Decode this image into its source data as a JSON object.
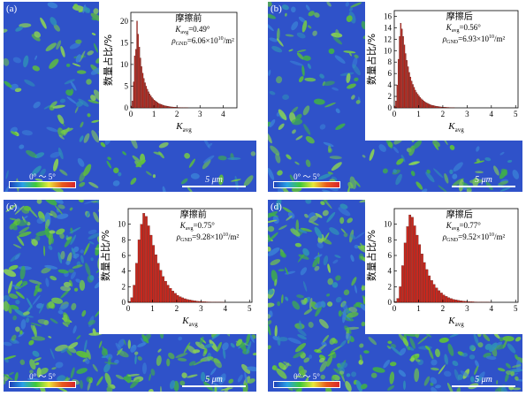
{
  "colors": {
    "bar_fill": "#c8281e",
    "map_base": "#2f52c9",
    "map_speckle": "#66c33c"
  },
  "panels": [
    {
      "label": "(a)",
      "scale_text": "5 μm",
      "legend_text": "0° ～ 5°",
      "inset": {
        "title": "摩擦前",
        "k_line": "=0.49°",
        "rho_line": "=6.06×10",
        "rho_exp": "10",
        "rho_unit": "/m²"
      }
    },
    {
      "label": "(b)",
      "scale_text": "5 μm",
      "legend_text": "0° ～ 5°",
      "inset": {
        "title": "摩擦后",
        "k_line": "=0.56°",
        "rho_line": "=6.93×10",
        "rho_exp": "10",
        "rho_unit": "/m²"
      }
    },
    {
      "label": "(c)",
      "scale_text": "5 μm",
      "legend_text": "0° ～ 5°",
      "inset": {
        "title": "摩擦前",
        "k_line": "=0.75°",
        "rho_line": "=9.28×10",
        "rho_exp": "10",
        "rho_unit": "/m²"
      }
    },
    {
      "label": "(d)",
      "scale_text": "5 μm",
      "legend_text": "0° ～ 5°",
      "inset": {
        "title": "摩擦后",
        "k_line": "=0.77°",
        "rho_line": "=9.52×10",
        "rho_exp": "10",
        "rho_unit": "/m²"
      }
    }
  ],
  "chart_data": [
    {
      "type": "bar",
      "panel": "(a)",
      "xlabel": "K",
      "xlabel_sub": "avg",
      "ylabel": "数量占比/%",
      "xlim": [
        0,
        4.6
      ],
      "ylim": [
        0,
        22
      ],
      "xticks": [
        0,
        1,
        2,
        3,
        4
      ],
      "yticks": [
        0,
        5,
        10,
        15,
        20
      ],
      "bin_width": 0.05,
      "bins_x": [
        0.025,
        0.075,
        0.125,
        0.175,
        0.225,
        0.275,
        0.325,
        0.375,
        0.425,
        0.475,
        0.525,
        0.575,
        0.625,
        0.675,
        0.725,
        0.775,
        0.825,
        0.875,
        0.925,
        0.975,
        1.025,
        1.075,
        1.125,
        1.175,
        1.225,
        1.275,
        1.325,
        1.375,
        1.425,
        1.475,
        1.525,
        1.575,
        1.625,
        1.675,
        1.725,
        1.775,
        1.825,
        1.875,
        1.925,
        1.975,
        2.025,
        2.075,
        2.125,
        2.175,
        2.225,
        2.275,
        2.325,
        2.375,
        2.425,
        2.475
      ],
      "values": [
        0.4,
        1.6,
        6.0,
        12.0,
        13.5,
        20.0,
        17.0,
        14.0,
        11.5,
        9.5,
        8.0,
        6.8,
        5.8,
        5.0,
        4.3,
        3.7,
        3.2,
        2.8,
        2.4,
        2.1,
        1.8,
        1.6,
        1.4,
        1.2,
        1.0,
        0.9,
        0.8,
        0.7,
        0.6,
        0.5,
        0.45,
        0.4,
        0.35,
        0.3,
        0.25,
        0.22,
        0.2,
        0.18,
        0.15,
        0.13,
        0.11,
        0.1,
        0.09,
        0.08,
        0.07,
        0.06,
        0.05,
        0.04,
        0.03,
        0.02
      ]
    },
    {
      "type": "bar",
      "panel": "(b)",
      "xlabel": "K",
      "xlabel_sub": "avg",
      "ylabel": "数量占比/%",
      "xlim": [
        0,
        5.1
      ],
      "ylim": [
        0,
        17
      ],
      "xticks": [
        0,
        1,
        2,
        3,
        4,
        5
      ],
      "yticks": [
        0,
        2,
        4,
        6,
        8,
        10,
        12,
        14,
        16
      ],
      "bin_width": 0.05,
      "bins_x": [
        0.025,
        0.075,
        0.125,
        0.175,
        0.225,
        0.275,
        0.325,
        0.375,
        0.425,
        0.475,
        0.525,
        0.575,
        0.625,
        0.675,
        0.725,
        0.775,
        0.825,
        0.875,
        0.925,
        0.975,
        1.025,
        1.075,
        1.125,
        1.175,
        1.225,
        1.275,
        1.325,
        1.375,
        1.425,
        1.475,
        1.525,
        1.575,
        1.625,
        1.675,
        1.725,
        1.775,
        1.825,
        1.875,
        1.925,
        1.975,
        2.025,
        2.075,
        2.125,
        2.175,
        2.225,
        2.275,
        2.325,
        2.375,
        2.425,
        2.475
      ],
      "values": [
        0.3,
        1.2,
        4.0,
        8.5,
        12.5,
        14.8,
        13.8,
        12.5,
        11.0,
        9.5,
        8.3,
        7.2,
        6.2,
        5.4,
        4.7,
        4.1,
        3.6,
        3.1,
        2.7,
        2.4,
        2.1,
        1.8,
        1.6,
        1.4,
        1.2,
        1.05,
        0.9,
        0.8,
        0.7,
        0.6,
        0.52,
        0.45,
        0.4,
        0.35,
        0.3,
        0.26,
        0.23,
        0.2,
        0.17,
        0.15,
        0.13,
        0.11,
        0.1,
        0.09,
        0.08,
        0.07,
        0.06,
        0.05,
        0.04,
        0.03
      ]
    },
    {
      "type": "bar",
      "panel": "(c)",
      "xlabel": "K",
      "xlabel_sub": "avg",
      "ylabel": "数量占比/%",
      "xlim": [
        0,
        5.1
      ],
      "ylim": [
        0,
        12
      ],
      "xticks": [
        0,
        1,
        2,
        3,
        4,
        5
      ],
      "yticks": [
        0,
        2,
        4,
        6,
        8,
        10
      ],
      "bin_width": 0.1,
      "bins_x": [
        0.05,
        0.15,
        0.25,
        0.35,
        0.45,
        0.55,
        0.65,
        0.75,
        0.85,
        0.95,
        1.05,
        1.15,
        1.25,
        1.35,
        1.45,
        1.55,
        1.65,
        1.75,
        1.85,
        1.95,
        2.05,
        2.15,
        2.25,
        2.35,
        2.45,
        2.55,
        2.65,
        2.75,
        2.85,
        2.95,
        3.05,
        3.15,
        3.25,
        3.35,
        3.45,
        3.55,
        3.65,
        3.75,
        3.85,
        3.95
      ],
      "values": [
        0.1,
        0.6,
        2.2,
        5.0,
        8.0,
        10.0,
        11.4,
        11.0,
        9.8,
        8.6,
        7.3,
        6.1,
        5.0,
        4.1,
        3.3,
        2.7,
        2.2,
        1.8,
        1.45,
        1.15,
        0.9,
        0.72,
        0.58,
        0.46,
        0.37,
        0.3,
        0.24,
        0.19,
        0.15,
        0.12,
        0.1,
        0.08,
        0.06,
        0.05,
        0.04,
        0.03,
        0.03,
        0.02,
        0.02,
        0.01
      ]
    },
    {
      "type": "bar",
      "panel": "(d)",
      "xlabel": "K",
      "xlabel_sub": "avg",
      "ylabel": "数量占比/%",
      "xlim": [
        0,
        5.1
      ],
      "ylim": [
        0,
        12
      ],
      "xticks": [
        0,
        1,
        2,
        3,
        4,
        5
      ],
      "yticks": [
        0,
        2,
        4,
        6,
        8,
        10
      ],
      "bin_width": 0.1,
      "bins_x": [
        0.05,
        0.15,
        0.25,
        0.35,
        0.45,
        0.55,
        0.65,
        0.75,
        0.85,
        0.95,
        1.05,
        1.15,
        1.25,
        1.35,
        1.45,
        1.55,
        1.65,
        1.75,
        1.85,
        1.95,
        2.05,
        2.15,
        2.25,
        2.35,
        2.45,
        2.55,
        2.65,
        2.75,
        2.85,
        2.95,
        3.05,
        3.15,
        3.25,
        3.35,
        3.45,
        3.55,
        3.65,
        3.75,
        3.85,
        3.95
      ],
      "values": [
        0.1,
        0.5,
        2.0,
        4.7,
        7.6,
        9.7,
        11.2,
        10.9,
        9.8,
        8.6,
        7.4,
        6.2,
        5.1,
        4.2,
        3.4,
        2.8,
        2.3,
        1.85,
        1.5,
        1.2,
        0.95,
        0.76,
        0.6,
        0.48,
        0.38,
        0.31,
        0.25,
        0.2,
        0.16,
        0.13,
        0.1,
        0.08,
        0.07,
        0.05,
        0.04,
        0.03,
        0.03,
        0.02,
        0.02,
        0.01
      ]
    }
  ]
}
